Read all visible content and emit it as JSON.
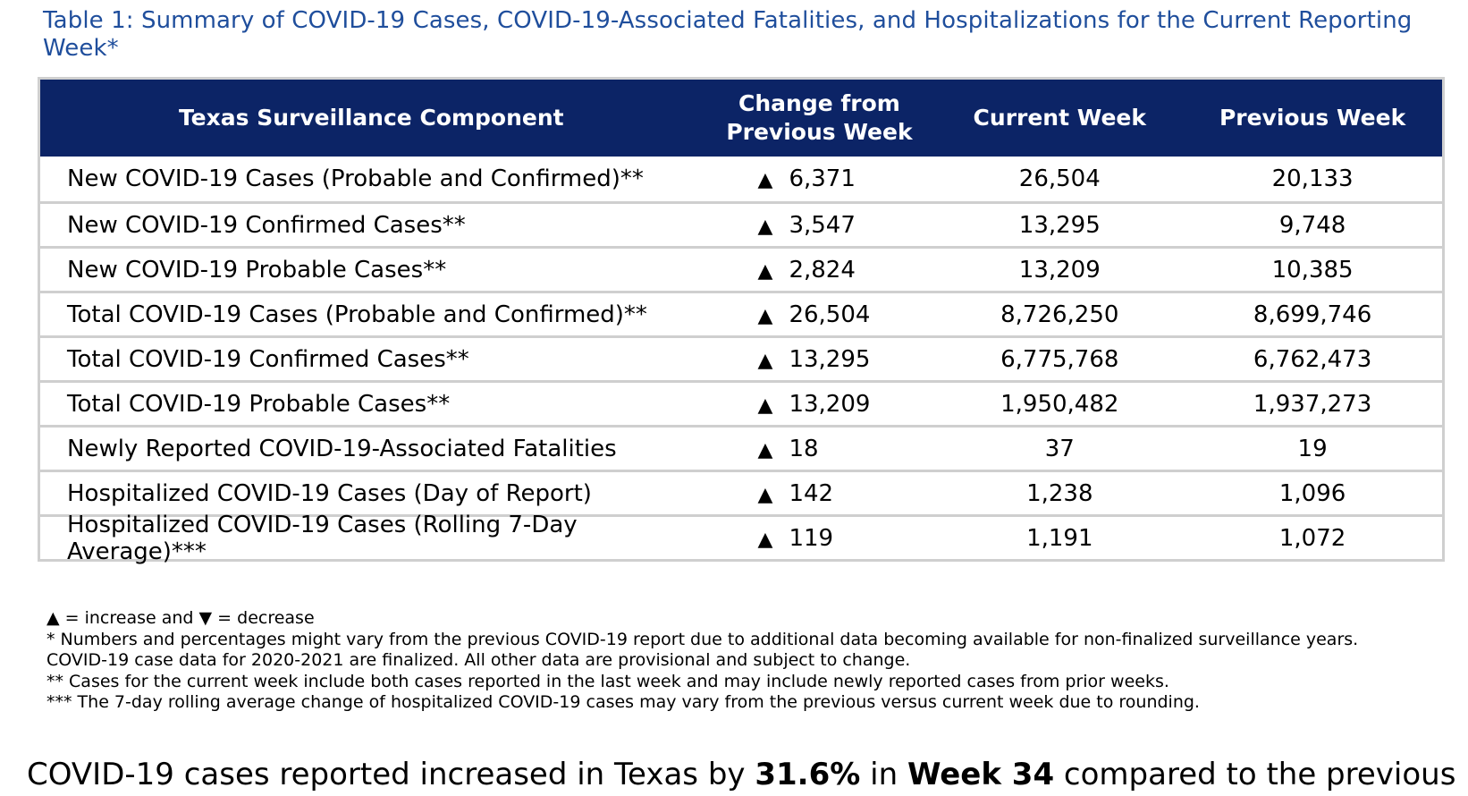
{
  "caption": "Table 1: Summary of COVID-19 Cases, COVID-19-Associated Fatalities, and Hospitalizations for the Current Reporting Week*",
  "headers": {
    "component": "Texas Surveillance Component",
    "change": "Change from Previous Week",
    "current": "Current Week",
    "previous": "Previous Week"
  },
  "increase_symbol": "▲",
  "rows": [
    {
      "label": "New COVID-19 Cases (Probable and Confirmed)**",
      "change": "6,371",
      "current": "26,504",
      "previous": "20,133"
    },
    {
      "label": "New COVID-19 Confirmed Cases**",
      "change": "3,547",
      "current": "13,295",
      "previous": "9,748"
    },
    {
      "label": "New COVID-19 Probable Cases**",
      "change": "2,824",
      "current": "13,209",
      "previous": "10,385"
    },
    {
      "label": "Total COVID-19 Cases (Probable and Confirmed)**",
      "change": "26,504",
      "current": "8,726,250",
      "previous": "8,699,746"
    },
    {
      "label": "Total COVID-19 Confirmed Cases**",
      "change": "13,295",
      "current": "6,775,768",
      "previous": "6,762,473"
    },
    {
      "label": "Total COVID-19 Probable Cases**",
      "change": "13,209",
      "current": "1,950,482",
      "previous": "1,937,273"
    },
    {
      "label": "Newly Reported COVID-19-Associated Fatalities",
      "change": "18",
      "current": "37",
      "previous": "19"
    },
    {
      "label": "Hospitalized COVID-19 Cases (Day of Report)",
      "change": "142",
      "current": "1,238",
      "previous": "1,096"
    },
    {
      "label": "Hospitalized COVID-19 Cases (Rolling 7-Day Average)***",
      "change": "119",
      "current": "1,191",
      "previous": "1,072"
    }
  ],
  "notes": {
    "legend": "▲ = increase and ▼ = decrease",
    "note1": "* Numbers and percentages might vary from the previous COVID-19 report due to additional data becoming available for non-finalized surveillance years.",
    "note1b": "COVID-19 case data for 2020-2021 are finalized. All other data are provisional and subject to change.",
    "note2": "** Cases for the current week include both cases reported in the last week and may include newly reported cases from prior weeks.",
    "note3": "*** The 7-day rolling average change of hospitalized COVID-19 cases may vary from the previous versus current week due to rounding."
  },
  "paragraph": {
    "part1": "COVID-19 cases reported increased in Texas by ",
    "percent": "31.6%",
    "part2": " in ",
    "week": "Week 34",
    "part3": " compared to the previous"
  }
}
